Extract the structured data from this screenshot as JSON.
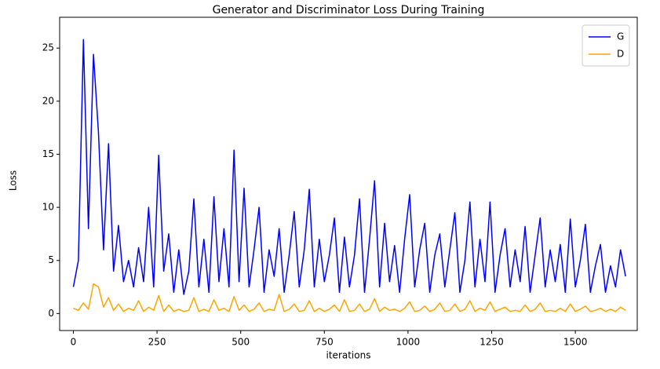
{
  "chart_data": {
    "type": "line",
    "title": "Generator and Discriminator Loss During Training",
    "x_label": "iterations",
    "y_label": "Loss",
    "x": [
      0,
      15,
      30,
      45,
      60,
      75,
      90,
      105,
      120,
      135,
      150,
      165,
      180,
      195,
      210,
      225,
      240,
      255,
      270,
      285,
      300,
      315,
      330,
      345,
      360,
      375,
      390,
      405,
      420,
      435,
      450,
      465,
      480,
      495,
      510,
      525,
      540,
      555,
      570,
      585,
      600,
      615,
      630,
      645,
      660,
      675,
      690,
      705,
      720,
      735,
      750,
      765,
      780,
      795,
      810,
      825,
      840,
      855,
      870,
      885,
      900,
      915,
      930,
      945,
      960,
      975,
      990,
      1005,
      1020,
      1035,
      1050,
      1065,
      1080,
      1095,
      1110,
      1125,
      1140,
      1155,
      1170,
      1185,
      1200,
      1215,
      1230,
      1245,
      1260,
      1275,
      1290,
      1305,
      1320,
      1335,
      1350,
      1365,
      1380,
      1395,
      1410,
      1425,
      1440,
      1455,
      1470,
      1485,
      1500,
      1515,
      1530,
      1545,
      1560,
      1575,
      1590,
      1605,
      1620,
      1635,
      1650
    ],
    "series": [
      {
        "name": "G",
        "color": "#0000ff",
        "values": [
          2.5,
          5,
          25.8,
          8,
          24.4,
          17,
          6,
          16,
          4,
          8.3,
          3,
          5,
          2.5,
          6.2,
          3,
          10,
          2.5,
          14.9,
          4,
          7.5,
          2,
          6,
          1.8,
          4,
          10.8,
          2.5,
          7,
          2,
          11,
          3,
          8,
          2.5,
          15.4,
          3,
          11.8,
          2.5,
          6,
          10,
          2,
          6,
          3.5,
          8,
          2,
          5.5,
          9.6,
          2.5,
          6,
          11.7,
          2.5,
          7,
          3,
          5.5,
          9,
          2,
          7.2,
          2.5,
          5.5,
          10.8,
          2,
          7,
          12.5,
          2.5,
          8.5,
          3,
          6.4,
          2,
          7,
          11.2,
          2.5,
          6,
          8.5,
          2,
          5.5,
          7.5,
          2.5,
          6,
          9.5,
          2,
          5,
          10.5,
          2.5,
          7,
          3,
          10.5,
          2,
          5.5,
          8,
          2.5,
          6,
          3,
          8.2,
          2,
          5.5,
          9,
          2.5,
          6,
          3,
          6.5,
          2,
          8.9,
          2.5,
          5,
          8.4,
          2,
          4.5,
          6.5,
          2,
          4.5,
          2.5,
          6,
          3.5
        ]
      },
      {
        "name": "D",
        "color": "#ffa500",
        "values": [
          0.5,
          0.3,
          1,
          0.4,
          2.8,
          2.5,
          0.6,
          1.5,
          0.3,
          0.9,
          0.2,
          0.5,
          0.3,
          1.2,
          0.2,
          0.6,
          0.3,
          1.7,
          0.2,
          0.8,
          0.2,
          0.4,
          0.2,
          0.3,
          1.5,
          0.2,
          0.4,
          0.2,
          1.3,
          0.3,
          0.5,
          0.2,
          1.6,
          0.3,
          0.8,
          0.2,
          0.4,
          1.0,
          0.2,
          0.4,
          0.3,
          1.8,
          0.2,
          0.4,
          0.9,
          0.2,
          0.3,
          1.2,
          0.2,
          0.5,
          0.2,
          0.4,
          0.8,
          0.2,
          1.3,
          0.2,
          0.3,
          0.9,
          0.2,
          0.4,
          1.4,
          0.2,
          0.6,
          0.3,
          0.4,
          0.2,
          0.5,
          1.1,
          0.2,
          0.3,
          0.7,
          0.2,
          0.4,
          1.0,
          0.2,
          0.3,
          0.9,
          0.2,
          0.4,
          1.2,
          0.2,
          0.5,
          0.3,
          1.1,
          0.2,
          0.4,
          0.6,
          0.2,
          0.3,
          0.2,
          0.8,
          0.2,
          0.4,
          1.0,
          0.2,
          0.3,
          0.2,
          0.5,
          0.2,
          0.9,
          0.2,
          0.4,
          0.7,
          0.2,
          0.3,
          0.5,
          0.2,
          0.4,
          0.2,
          0.6,
          0.3
        ]
      }
    ],
    "xlim": [
      -41,
      1685
    ],
    "ylim": [
      -1.6,
      27.9
    ],
    "xticks": [
      0,
      250,
      500,
      750,
      1000,
      1250,
      1500
    ],
    "yticks": [
      0,
      5,
      10,
      15,
      20,
      25
    ],
    "legend": "upper right",
    "grid": false
  }
}
